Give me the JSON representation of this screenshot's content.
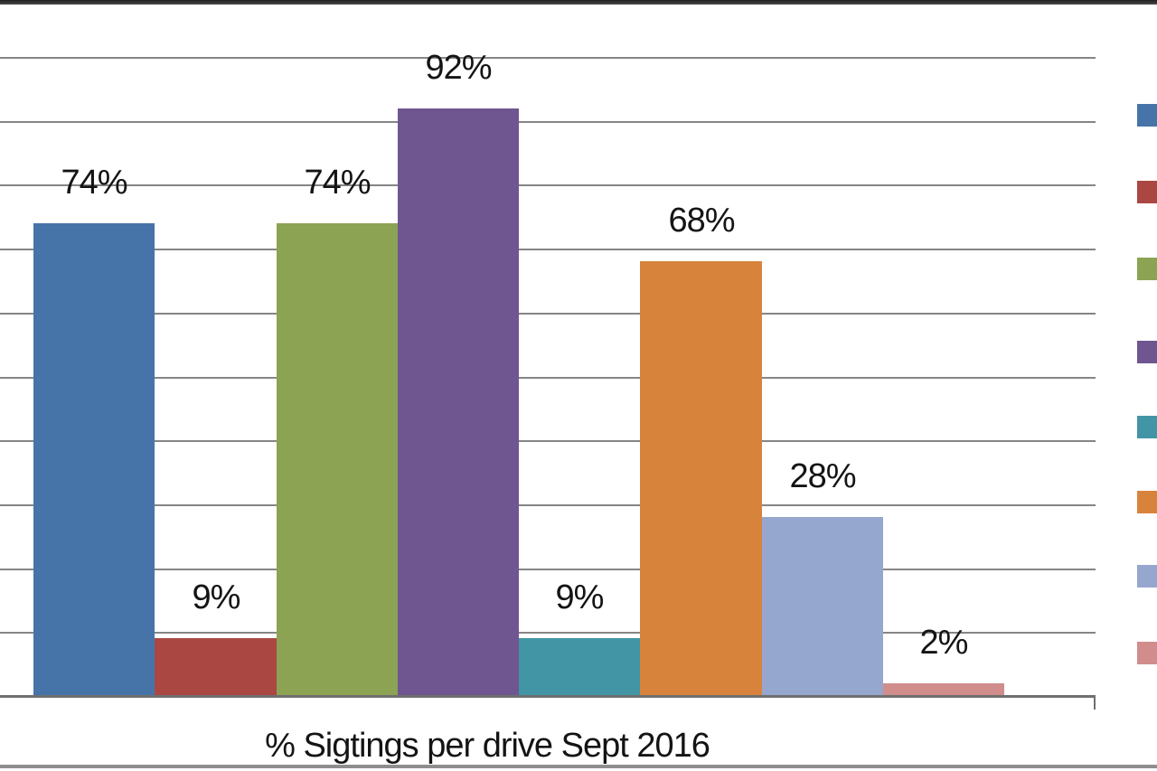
{
  "chart_data": {
    "type": "bar",
    "title": "",
    "xlabel": "% Sigtings per drive Sept 2016",
    "ylabel": "",
    "ylim": [
      0,
      100
    ],
    "gridlines": {
      "visible": true,
      "interval_percent": 10
    },
    "legend": {
      "position": "right",
      "labels_visible": false,
      "note": "legend label text cropped off right edge of image"
    },
    "series": [
      {
        "label": "74%",
        "value": 74,
        "color": "#4674A9"
      },
      {
        "label": "9%",
        "value": 9,
        "color": "#AA4743"
      },
      {
        "label": "74%",
        "value": 74,
        "color": "#8CA353"
      },
      {
        "label": "92%",
        "value": 92,
        "color": "#6F5690"
      },
      {
        "label": "9%",
        "value": 9,
        "color": "#4195A5"
      },
      {
        "label": "68%",
        "value": 68,
        "color": "#D8833C"
      },
      {
        "label": "28%",
        "value": 28,
        "color": "#95A7CE"
      },
      {
        "label": "2%",
        "value": 2,
        "color": "#D08D8C"
      }
    ]
  }
}
